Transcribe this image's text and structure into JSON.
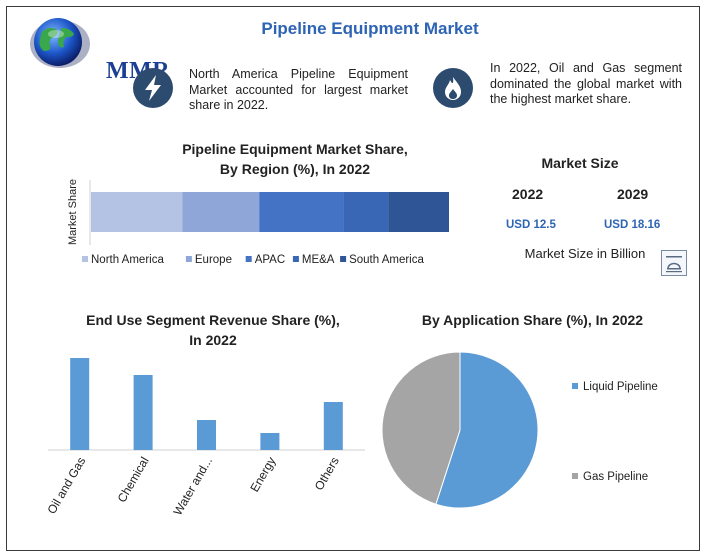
{
  "header": {
    "title": "Pipeline Equipment Market",
    "logo_text": "MMR"
  },
  "highlights": [
    {
      "icon": "lightning-icon",
      "text": "North America Pipeline Equipment Market accounted for largest market share in 2022."
    },
    {
      "icon": "flame-icon",
      "text": "In 2022, Oil and Gas segment dominated the global market with the highest market share."
    }
  ],
  "market_size": {
    "title": "Market Size",
    "years": [
      "2022",
      "2029"
    ],
    "values": [
      "USD 12.5",
      "USD 18.16"
    ],
    "unit_label": "Market Size in Billion"
  },
  "colors": {
    "accent": "#2e64b4",
    "icon_bg": "#2d4a6f",
    "bar_blue": "#5b9bd5",
    "pie_liquid": "#5b9bd5",
    "pie_gas": "#a5a5a5"
  },
  "chart_data": [
    {
      "type": "bar",
      "orientation": "horizontal-stacked",
      "title": "Pipeline Equipment Market Share, By Region (%), In 2022",
      "title_lines": [
        "Pipeline Equipment Market Share,",
        "By Region (%), In 2022"
      ],
      "ylabel": "Market Share",
      "xlim": [
        0,
        100
      ],
      "legend_position": "bottom",
      "series": [
        {
          "name": "North America",
          "value": 25.5,
          "color": "#b4c3e3"
        },
        {
          "name": "Europe",
          "value": 21.5,
          "color": "#8ea6d8"
        },
        {
          "name": "APAC",
          "value": 23.5,
          "color": "#4472c4"
        },
        {
          "name": "ME&A",
          "value": 12.5,
          "color": "#3a66b6"
        },
        {
          "name": "South America",
          "value": 17.0,
          "color": "#2f5597"
        }
      ]
    },
    {
      "type": "bar",
      "title": "End Use Segment Revenue Share (%), In 2022",
      "title_lines": [
        "End Use Segment Revenue Share (%),",
        "In 2022"
      ],
      "categories": [
        "Oil and Gas",
        "Chemical",
        "Water and...",
        "Energy",
        "Others"
      ],
      "values": [
        92,
        75,
        30,
        17,
        48
      ],
      "ylim": [
        0,
        100
      ],
      "color": "#5b9bd5"
    },
    {
      "type": "pie",
      "title": "By Application Share (%), In 2022",
      "legend_position": "right",
      "slices": [
        {
          "name": "Liquid Pipeline",
          "value": 55,
          "color": "#5b9bd5"
        },
        {
          "name": "Gas Pipeline",
          "value": 45,
          "color": "#a5a5a5"
        }
      ]
    }
  ]
}
